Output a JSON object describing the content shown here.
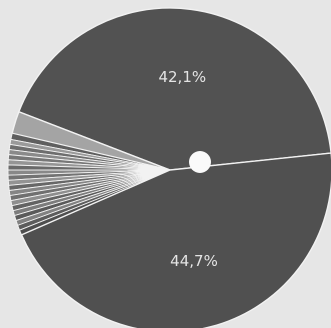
{
  "chart_data": {
    "type": "pie",
    "slices": [
      {
        "value": 42.1,
        "label": "42,1%",
        "color": "#525252"
      },
      {
        "value": 2.2,
        "label": "",
        "color": "#a4a4a4"
      },
      {
        "value": 0.6,
        "label": "",
        "color": "#5f5f5f"
      },
      {
        "value": 0.5,
        "label": "",
        "color": "#9a9a9a"
      },
      {
        "value": 0.5,
        "label": "",
        "color": "#6e6e6e"
      },
      {
        "value": 0.5,
        "label": "",
        "color": "#8a8a8a"
      },
      {
        "value": 0.5,
        "label": "",
        "color": "#777777"
      },
      {
        "value": 0.5,
        "label": "",
        "color": "#959595"
      },
      {
        "value": 0.5,
        "label": "",
        "color": "#6a6a6a"
      },
      {
        "value": 0.5,
        "label": "",
        "color": "#888888"
      },
      {
        "value": 0.5,
        "label": "",
        "color": "#737373"
      },
      {
        "value": 0.5,
        "label": "",
        "color": "#939393"
      },
      {
        "value": 0.5,
        "label": "",
        "color": "#676767"
      },
      {
        "value": 0.5,
        "label": "",
        "color": "#858585"
      },
      {
        "value": 0.5,
        "label": "",
        "color": "#707070"
      },
      {
        "value": 0.5,
        "label": "",
        "color": "#8e8e8e"
      },
      {
        "value": 0.5,
        "label": "",
        "color": "#636363"
      },
      {
        "value": 0.5,
        "label": "",
        "color": "#7c7c7c"
      },
      {
        "value": 0.5,
        "label": "",
        "color": "#5a5a5a"
      },
      {
        "value": 0.5,
        "label": "",
        "color": "#818181"
      },
      {
        "value": 0.5,
        "label": "",
        "color": "#5c5c5c"
      },
      {
        "value": 0.5,
        "label": "",
        "color": "#4f4f4f"
      },
      {
        "value": 44.7,
        "label": "44,7%",
        "color": "#505050"
      }
    ]
  }
}
